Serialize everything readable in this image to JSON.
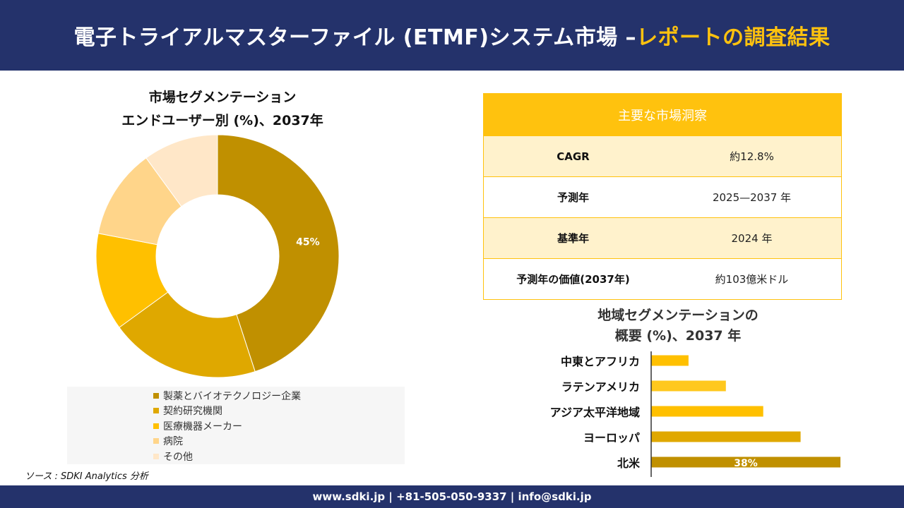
{
  "header": {
    "title_main": "電子トライアルマスターファイル (ETMF)システム市場 –",
    "title_accent": "レポートの調査結果"
  },
  "donut": {
    "title_line1": "市場セグメンテーション",
    "title_line2": "エンドユーザー別 (%)、2037年"
  },
  "insights": {
    "heading": "主要な市場洞察",
    "rows": [
      {
        "key": "CAGR",
        "value": "約12.8%"
      },
      {
        "key": "予測年",
        "value": "2025—2037 年"
      },
      {
        "key": "基準年",
        "value": "2024 年"
      },
      {
        "key": "予測年の価値(2037年)",
        "value": "約103億米ドル"
      }
    ]
  },
  "bars": {
    "title_line1": "地域セグメンテーションの",
    "title_line2": "概要 (%)、2037 年"
  },
  "source": "ソース : SDKI Analytics 分析",
  "footer": "www.sdki.jp | +81-505-050-9337 | info@sdki.jp",
  "chart_data": [
    {
      "type": "pie",
      "variant": "donut",
      "title": "市場セグメンテーション エンドユーザー別 (%)、2037年",
      "legend_position": "bottom",
      "categories": [
        "製薬とバイオテクノロジー企業",
        "契約研究機関",
        "医療機器メーカー",
        "病院",
        "その他"
      ],
      "values": [
        45,
        20,
        13,
        12,
        10
      ],
      "data_labels": [
        "45%",
        "",
        "",
        "",
        ""
      ],
      "colors": [
        "#c09000",
        "#dfa800",
        "#ffc000",
        "#ffd58a",
        "#ffe7c8"
      ]
    },
    {
      "type": "bar",
      "orientation": "horizontal",
      "title": "地域セグメンテーションの 概要 (%)、2037 年",
      "categories": [
        "中東とアフリカ",
        "ラテンアメリカ",
        "アジア太平洋地域",
        "ヨーロッパ",
        "北米"
      ],
      "values": [
        7.5,
        15,
        22.5,
        30,
        38
      ],
      "data_labels": [
        "",
        "",
        "",
        "",
        "38%"
      ],
      "colors": [
        "#ffc000",
        "#ffc81e",
        "#ffc000",
        "#e0a800",
        "#c09000"
      ],
      "xlim": [
        0,
        38
      ]
    }
  ]
}
